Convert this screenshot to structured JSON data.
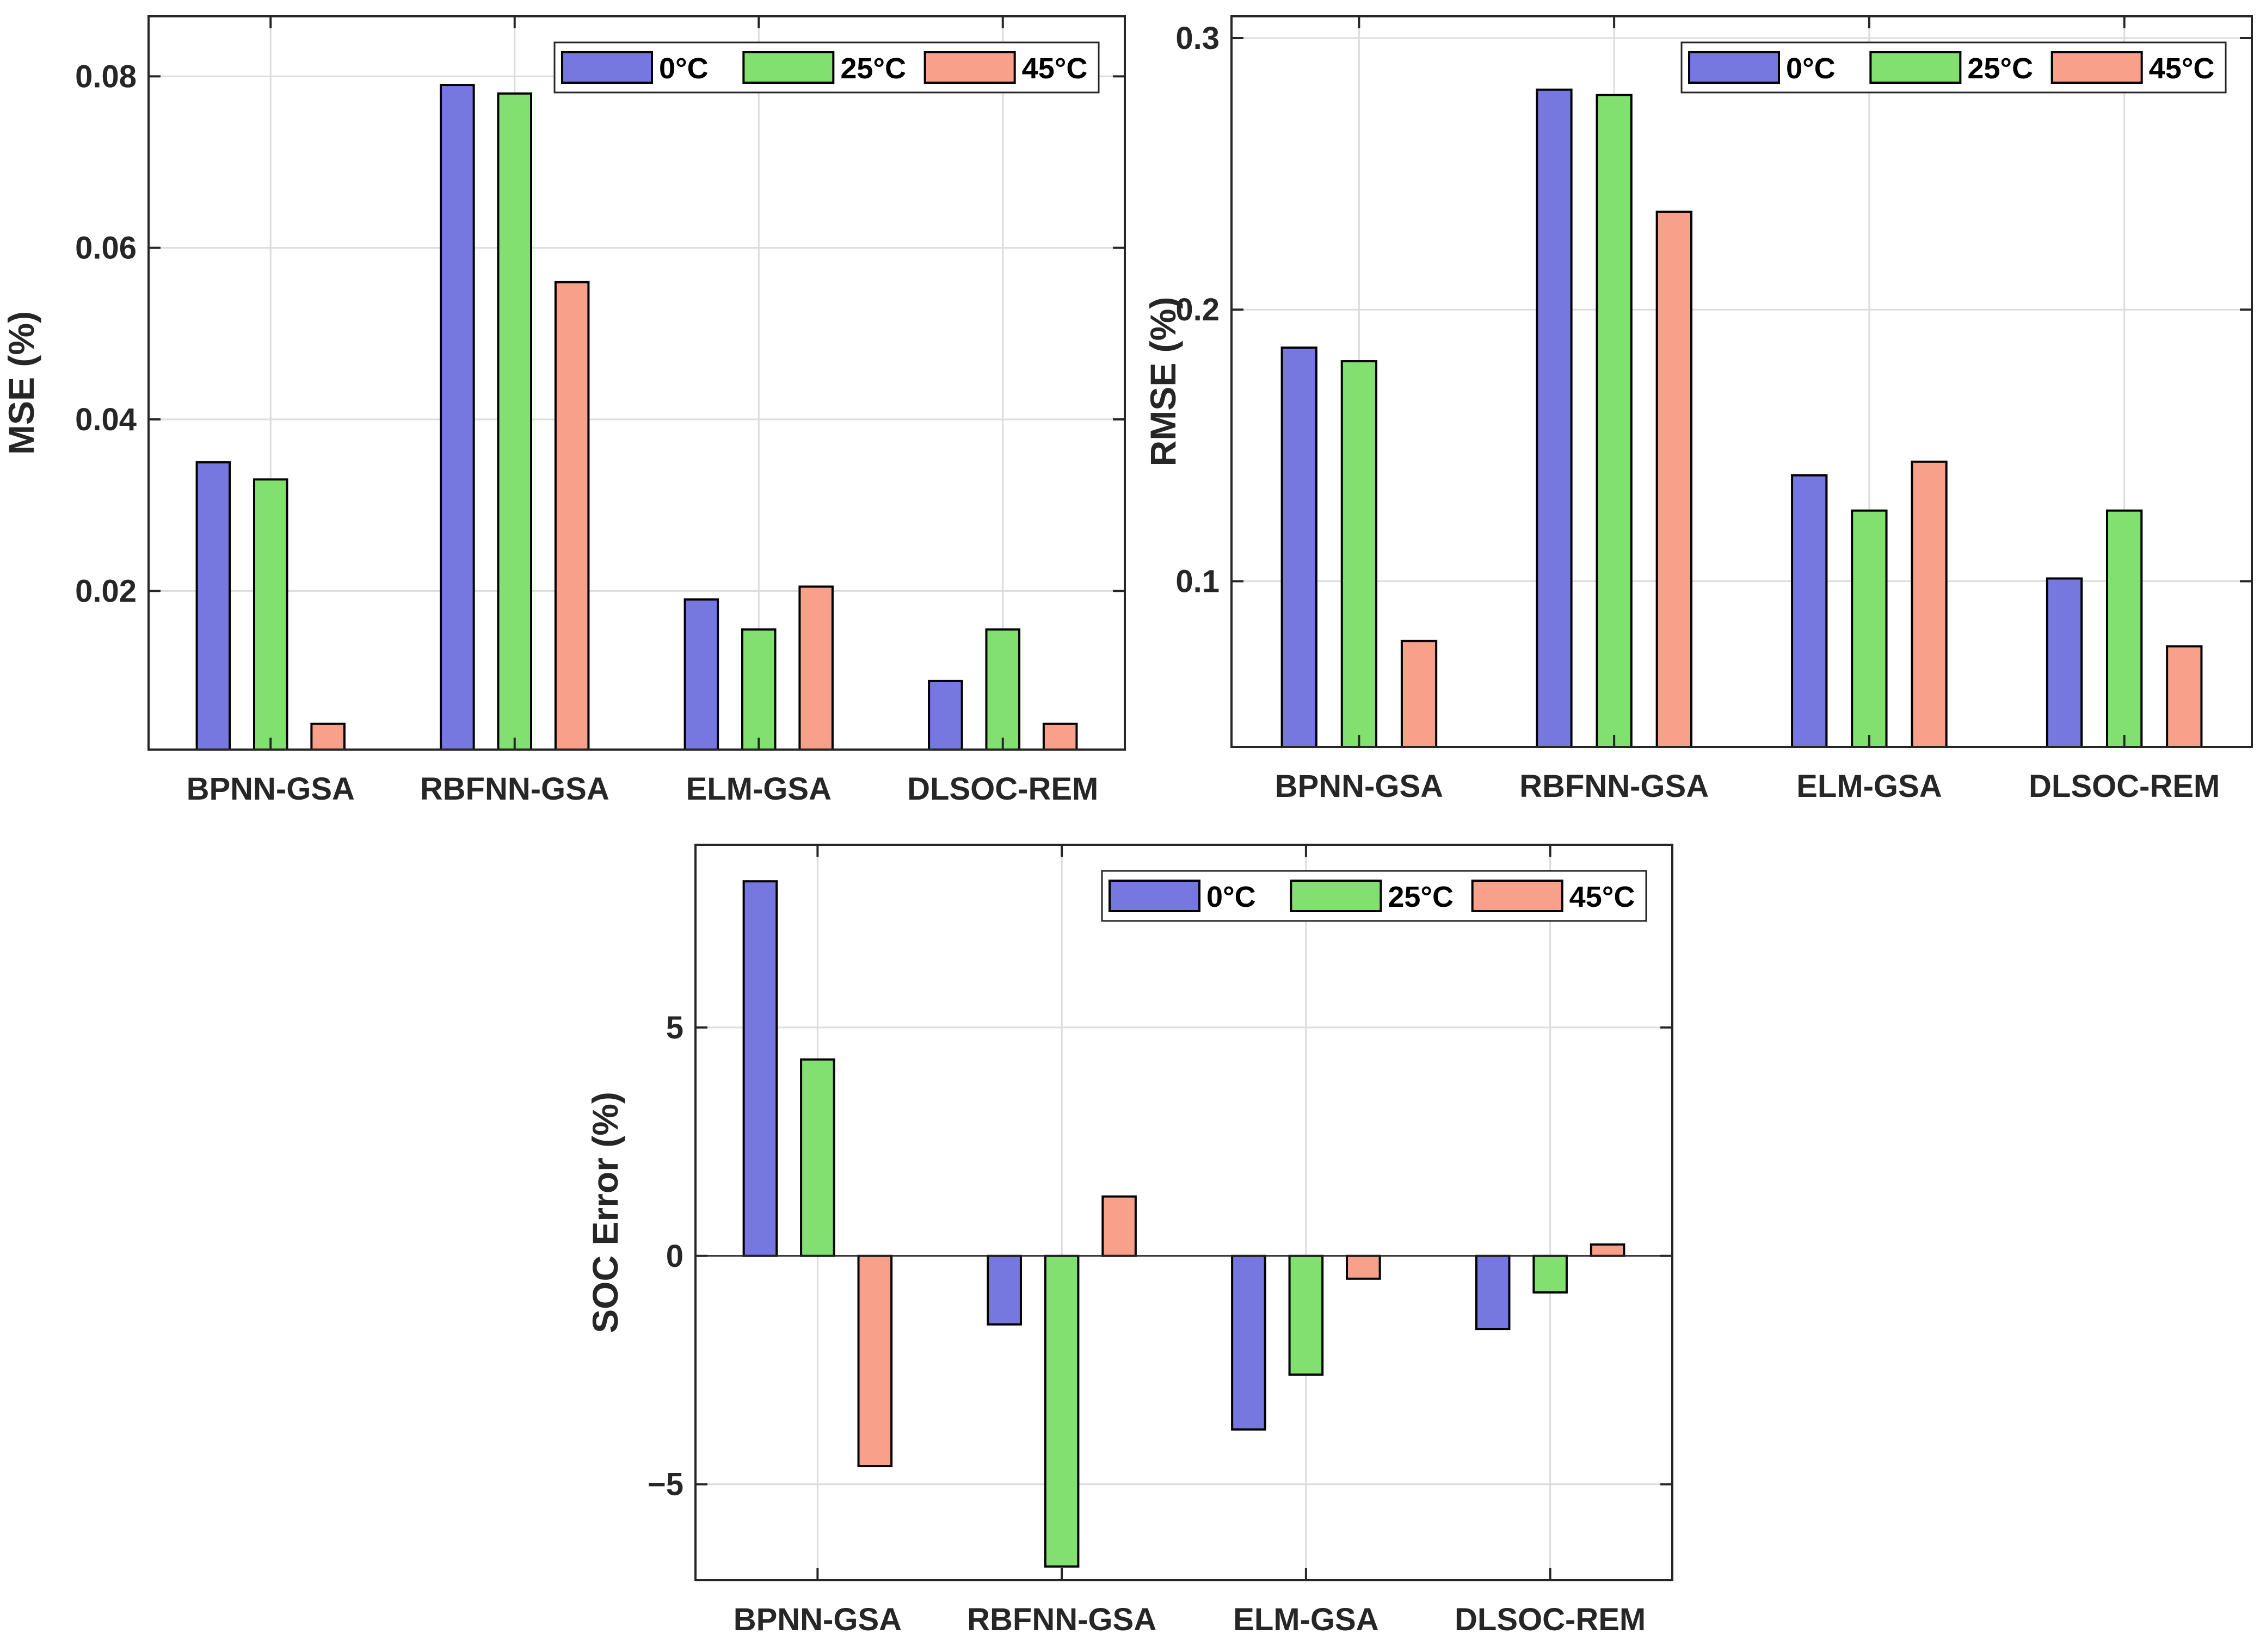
{
  "colors": {
    "0°C": "#7777e0",
    "25°C": "#82e070",
    "45°C": "#f8a08a"
  },
  "chart_data": [
    {
      "id": "mse",
      "type": "bar",
      "categories": [
        "BPNN-GSA",
        "RBFNN-GSA",
        "ELM-GSA",
        "DLSOC-REM"
      ],
      "series": [
        {
          "name": "0°C",
          "values": [
            0.035,
            0.079,
            0.019,
            0.0095
          ]
        },
        {
          "name": "25°C",
          "values": [
            0.033,
            0.078,
            0.0155,
            0.0155
          ]
        },
        {
          "name": "45°C",
          "values": [
            0.0045,
            0.056,
            0.0205,
            0.0045
          ]
        }
      ],
      "ylabel": "MSE (%)",
      "ylim": [
        0.0015,
        0.087
      ],
      "yticks": [
        0.02,
        0.04,
        0.06,
        0.08
      ],
      "ytick_labels": [
        "0.02",
        "0.04",
        "0.06",
        "0.08"
      ],
      "grid": true,
      "legend": "top-right"
    },
    {
      "id": "rmse",
      "type": "bar",
      "categories": [
        "BPNN-GSA",
        "RBFNN-GSA",
        "ELM-GSA",
        "DLSOC-REM"
      ],
      "series": [
        {
          "name": "0°C",
          "values": [
            0.186,
            0.281,
            0.139,
            0.101
          ]
        },
        {
          "name": "25°C",
          "values": [
            0.181,
            0.279,
            0.126,
            0.126
          ]
        },
        {
          "name": "45°C",
          "values": [
            0.078,
            0.236,
            0.144,
            0.076
          ]
        }
      ],
      "ylabel": "RMSE (%)",
      "ylim": [
        0.039,
        0.308
      ],
      "yticks": [
        0.1,
        0.2,
        0.3
      ],
      "ytick_labels": [
        "0.1",
        "0.2",
        "0.3"
      ],
      "grid": true,
      "legend": "top-right"
    },
    {
      "id": "soc",
      "type": "bar",
      "categories": [
        "BPNN-GSA",
        "RBFNN-GSA",
        "ELM-GSA",
        "DLSOC-REM"
      ],
      "series": [
        {
          "name": "0°C",
          "values": [
            8.2,
            -1.5,
            -3.8,
            -1.6
          ]
        },
        {
          "name": "25°C",
          "values": [
            4.3,
            -6.8,
            -2.6,
            -0.8
          ]
        },
        {
          "name": "45°C",
          "values": [
            -4.6,
            1.3,
            -0.5,
            0.25
          ]
        }
      ],
      "ylabel": "SOC Error (%)",
      "ylim": [
        -7.1,
        9.0
      ],
      "yticks": [
        -5,
        0,
        5
      ],
      "ytick_labels": [
        "−5",
        "0",
        "5"
      ],
      "grid": true,
      "legend": "top-right"
    }
  ]
}
